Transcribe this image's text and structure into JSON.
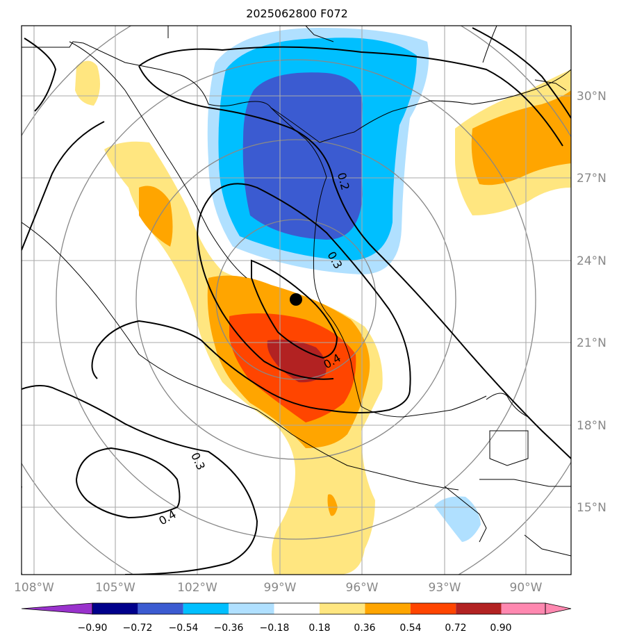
{
  "title": "2025062800 F072",
  "map": {
    "lat_ticks": [
      "30°N",
      "27°N",
      "24°N",
      "21°N",
      "18°N",
      "15°N"
    ],
    "lon_ticks": [
      "108°W",
      "105°W",
      "102°W",
      "99°W",
      "96°W",
      "93°W",
      "90°W"
    ],
    "extent": {
      "lon_min": -108.3,
      "lon_max": -88.3,
      "lat_min": 12.7,
      "lat_max": 32.5
    },
    "center_marker": {
      "lon": -98.2,
      "lat": 22.5
    },
    "contour_labels": [
      "0.2",
      "0.3",
      "0.4",
      "0.3",
      "0.4"
    ]
  },
  "colorbar": {
    "levels": [
      "−0.90",
      "−0.72",
      "−0.54",
      "−0.36",
      "−0.18",
      "0.18",
      "0.36",
      "0.54",
      "0.72",
      "0.90"
    ],
    "colors": [
      "#9932cc",
      "#00008b",
      "#3b5bd1",
      "#00bfff",
      "#b0e0ff",
      "#ffffff",
      "#ffe680",
      "#ffa500",
      "#ff4500",
      "#b22222",
      "#ff88b0"
    ]
  }
}
